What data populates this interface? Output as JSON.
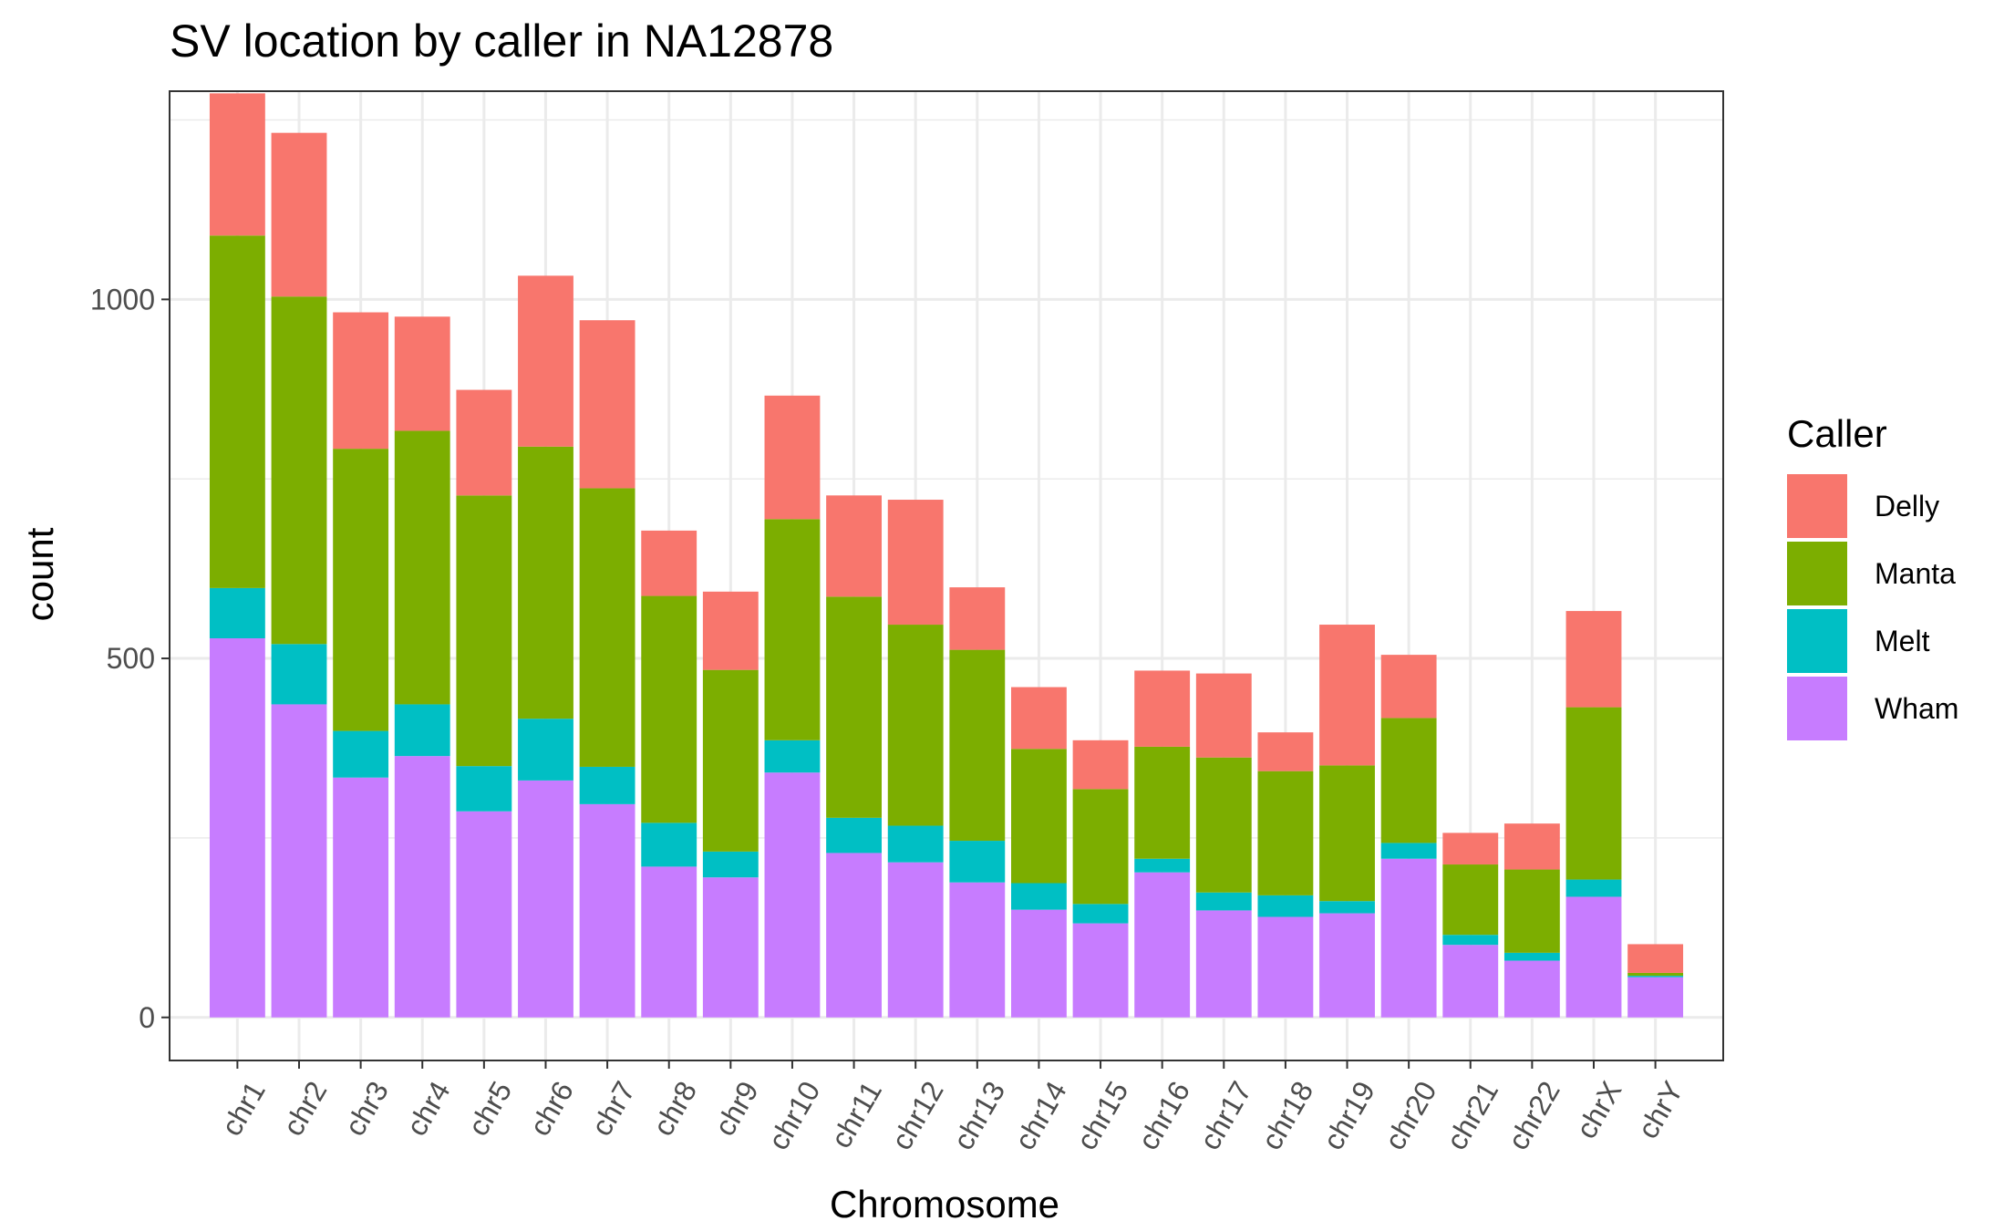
{
  "chart_data": {
    "type": "bar",
    "stacked": true,
    "title": "SV location by caller in NA12878",
    "xlabel": "Chromosome",
    "ylabel": "count",
    "ylim": [
      -60,
      1290
    ],
    "yticks": [
      0,
      500,
      1000
    ],
    "grid": true,
    "legend_title": "Caller",
    "legend_position": "right",
    "categories": [
      "chr1",
      "chr2",
      "chr3",
      "chr4",
      "chr5",
      "chr6",
      "chr7",
      "chr8",
      "chr9",
      "chr10",
      "chr11",
      "chr12",
      "chr13",
      "chr14",
      "chr15",
      "chr16",
      "chr17",
      "chr18",
      "chr19",
      "chr20",
      "chr21",
      "chr22",
      "chrX",
      "chrY"
    ],
    "series": [
      {
        "name": "Delly",
        "color": "#F8766D",
        "values": [
          198,
          228,
          190,
          159,
          147,
          238,
          234,
          91,
          109,
          172,
          141,
          174,
          87,
          86,
          68,
          106,
          117,
          54,
          196,
          88,
          44,
          64,
          134,
          40
        ]
      },
      {
        "name": "Manta",
        "color": "#7CAE00",
        "values": [
          491,
          484,
          393,
          381,
          377,
          379,
          388,
          316,
          253,
          308,
          308,
          280,
          266,
          187,
          160,
          156,
          188,
          173,
          189,
          174,
          98,
          116,
          240,
          4
        ]
      },
      {
        "name": "Melt",
        "color": "#00BFC4",
        "values": [
          70,
          84,
          65,
          72,
          63,
          86,
          52,
          61,
          36,
          45,
          49,
          51,
          58,
          37,
          27,
          19,
          25,
          30,
          17,
          22,
          14,
          11,
          24,
          2
        ]
      },
      {
        "name": "Wham",
        "color": "#C77CFF",
        "values": [
          528,
          436,
          334,
          364,
          287,
          330,
          297,
          210,
          195,
          341,
          229,
          216,
          188,
          150,
          131,
          202,
          149,
          140,
          145,
          221,
          101,
          79,
          168,
          56
        ]
      }
    ],
    "legend_order": [
      "Delly",
      "Manta",
      "Melt",
      "Wham"
    ]
  }
}
